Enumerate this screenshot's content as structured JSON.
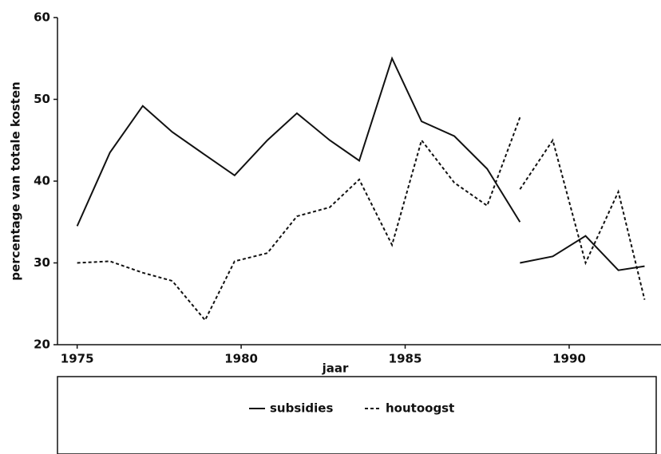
{
  "chart_data": {
    "type": "line",
    "x_label": "jaar",
    "y_label": "percentage van totale kosten",
    "x": [
      1975,
      1976,
      1977,
      1977.9,
      1978.9,
      1979.8,
      1980.8,
      1981.7,
      1982.7,
      1983.6,
      1984.6,
      1985.5,
      1986.5,
      1987.5,
      1988.5,
      null,
      1988.5,
      1989.5,
      1990.5,
      1991.5,
      1992.3
    ],
    "series": [
      {
        "name": "subsidies",
        "color": "#111111",
        "dash": "solid",
        "values": [
          34.5,
          43.5,
          49.2,
          46,
          43.2,
          40.7,
          45,
          48.3,
          45,
          42.5,
          55,
          47.3,
          45.5,
          41.5,
          35,
          null,
          30,
          30.8,
          33.3,
          29.1,
          29.6
        ]
      },
      {
        "name": "houtoogst",
        "color": "#111111",
        "dash": "dotted",
        "values": [
          30,
          30.2,
          28.8,
          27.8,
          23,
          30.2,
          31.2,
          35.7,
          36.8,
          40.2,
          32.2,
          45,
          39.8,
          37,
          47.8,
          null,
          39,
          45,
          30,
          38.7,
          25.5
        ]
      }
    ],
    "xlim": [
      1974.4,
      1992.8
    ],
    "xticks": [
      1975,
      1980,
      1985,
      1990
    ],
    "ylim": [
      20,
      60
    ],
    "yticks": [
      20,
      30,
      40,
      50,
      60
    ]
  }
}
